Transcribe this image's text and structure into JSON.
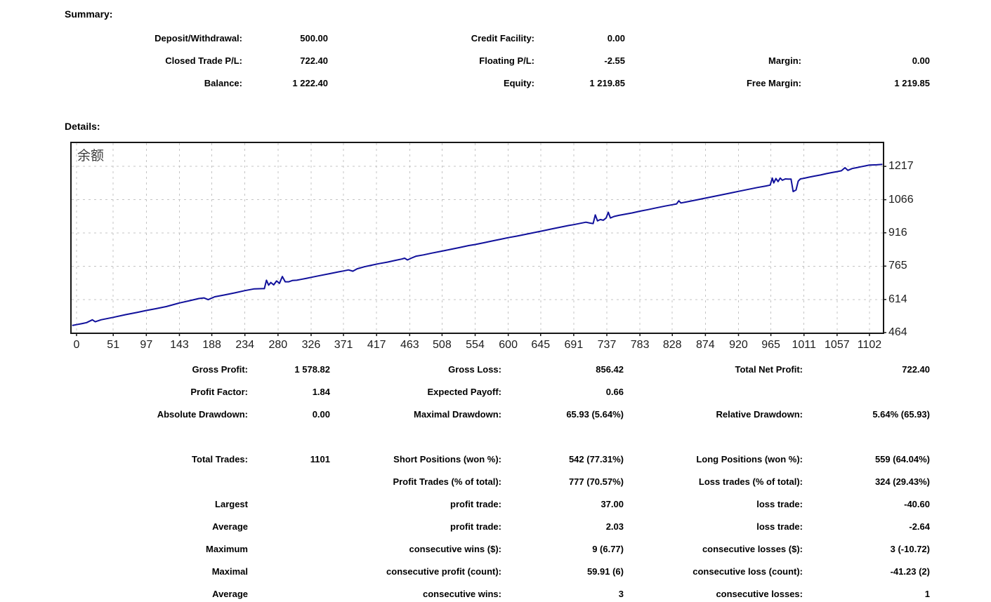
{
  "summary": {
    "heading": "Summary:",
    "rows": [
      [
        "Deposit/Withdrawal:",
        "500.00",
        "Credit Facility:",
        "0.00",
        "",
        ""
      ],
      [
        "Closed Trade P/L:",
        "722.40",
        "Floating P/L:",
        "-2.55",
        "Margin:",
        "0.00"
      ],
      [
        "Balance:",
        "1 222.40",
        "Equity:",
        "1 219.85",
        "Free Margin:",
        "1 219.85"
      ]
    ]
  },
  "details": {
    "heading": "Details:",
    "rows": [
      [
        "Gross Profit:",
        "1 578.82",
        "Gross Loss:",
        "856.42",
        "Total Net Profit:",
        "722.40"
      ],
      [
        "Profit Factor:",
        "1.84",
        "Expected Payoff:",
        "0.66",
        "",
        ""
      ],
      [
        "Absolute Drawdown:",
        "0.00",
        "Maximal Drawdown:",
        "65.93 (5.64%)",
        "Relative Drawdown:",
        "5.64% (65.93)"
      ],
      [
        "",
        "",
        "",
        "",
        "",
        ""
      ],
      [
        "Total Trades:",
        "1101",
        "Short Positions (won %):",
        "542 (77.31%)",
        "Long Positions (won %):",
        "559 (64.04%)"
      ],
      [
        "",
        "",
        "Profit Trades (% of total):",
        "777 (70.57%)",
        "Loss trades (% of total):",
        "324 (29.43%)"
      ],
      [
        "Largest",
        "",
        "profit trade:",
        "37.00",
        "loss trade:",
        "-40.60"
      ],
      [
        "Average",
        "",
        "profit trade:",
        "2.03",
        "loss trade:",
        "-2.64"
      ],
      [
        "Maximum",
        "",
        "consecutive wins ($):",
        "9 (6.77)",
        "consecutive losses ($):",
        "3 (-10.72)"
      ],
      [
        "Maximal",
        "",
        "consecutive profit (count):",
        "59.91 (6)",
        "consecutive loss (count):",
        "-41.23 (2)"
      ],
      [
        "Average",
        "",
        "consecutive wins:",
        "3",
        "consecutive losses:",
        "1"
      ]
    ]
  },
  "chart_data": {
    "type": "line",
    "title": "余额",
    "line_color": "#10109B",
    "grid_color": "#c4c4c4",
    "axis_color": "#161616",
    "grid": "dashed",
    "x_ticks": [
      0,
      51,
      97,
      143,
      188,
      234,
      280,
      326,
      371,
      417,
      463,
      508,
      554,
      600,
      645,
      691,
      737,
      783,
      828,
      874,
      920,
      965,
      1011,
      1057,
      1102
    ],
    "y_ticks": [
      464,
      614,
      765,
      916,
      1066,
      1217
    ],
    "x_range": [
      -6.8,
      1120.6
    ],
    "y_range": [
      464,
      1322.2
    ],
    "series": [
      {
        "name": "余额",
        "points": [
          [
            -6,
            496
          ],
          [
            0,
            500
          ],
          [
            8,
            505
          ],
          [
            14,
            509
          ],
          [
            22,
            522
          ],
          [
            26,
            513
          ],
          [
            34,
            522
          ],
          [
            51,
            533
          ],
          [
            68,
            545
          ],
          [
            85,
            556
          ],
          [
            97,
            564
          ],
          [
            110,
            572
          ],
          [
            125,
            582
          ],
          [
            143,
            598
          ],
          [
            158,
            609
          ],
          [
            170,
            618
          ],
          [
            177,
            621
          ],
          [
            183,
            613
          ],
          [
            192,
            626
          ],
          [
            205,
            634
          ],
          [
            220,
            644
          ],
          [
            234,
            654
          ],
          [
            247,
            662
          ],
          [
            258,
            663
          ],
          [
            261,
            663
          ],
          [
            264,
            701
          ],
          [
            267,
            679
          ],
          [
            270,
            691
          ],
          [
            274,
            680
          ],
          [
            278,
            698
          ],
          [
            282,
            687
          ],
          [
            286,
            718
          ],
          [
            290,
            694
          ],
          [
            295,
            694
          ],
          [
            300,
            700
          ],
          [
            306,
            701
          ],
          [
            312,
            705
          ],
          [
            320,
            710
          ],
          [
            326,
            714
          ],
          [
            338,
            722
          ],
          [
            352,
            731
          ],
          [
            364,
            739
          ],
          [
            371,
            743
          ],
          [
            378,
            748
          ],
          [
            384,
            742
          ],
          [
            390,
            753
          ],
          [
            400,
            762
          ],
          [
            410,
            769
          ],
          [
            420,
            776
          ],
          [
            432,
            783
          ],
          [
            443,
            791
          ],
          [
            452,
            797
          ],
          [
            456,
            801
          ],
          [
            460,
            793
          ],
          [
            465,
            801
          ],
          [
            472,
            810
          ],
          [
            482,
            816
          ],
          [
            494,
            824
          ],
          [
            508,
            833
          ],
          [
            520,
            841
          ],
          [
            532,
            849
          ],
          [
            545,
            858
          ],
          [
            554,
            863
          ],
          [
            566,
            871
          ],
          [
            578,
            879
          ],
          [
            590,
            887
          ],
          [
            600,
            894
          ],
          [
            612,
            901
          ],
          [
            624,
            909
          ],
          [
            636,
            917
          ],
          [
            648,
            925
          ],
          [
            660,
            933
          ],
          [
            672,
            941
          ],
          [
            684,
            949
          ],
          [
            691,
            953
          ],
          [
            700,
            959
          ],
          [
            708,
            964
          ],
          [
            714,
            960
          ],
          [
            718,
            958
          ],
          [
            721,
            997
          ],
          [
            724,
            970
          ],
          [
            728,
            976
          ],
          [
            732,
            973
          ],
          [
            736,
            983
          ],
          [
            739,
            1009
          ],
          [
            742,
            983
          ],
          [
            747,
            990
          ],
          [
            754,
            995
          ],
          [
            762,
            1000
          ],
          [
            772,
            1006
          ],
          [
            783,
            1014
          ],
          [
            794,
            1021
          ],
          [
            806,
            1029
          ],
          [
            818,
            1037
          ],
          [
            828,
            1043
          ],
          [
            834,
            1047
          ],
          [
            837,
            1061
          ],
          [
            840,
            1051
          ],
          [
            846,
            1055
          ],
          [
            854,
            1060
          ],
          [
            862,
            1065
          ],
          [
            874,
            1073
          ],
          [
            886,
            1081
          ],
          [
            898,
            1089
          ],
          [
            910,
            1097
          ],
          [
            922,
            1105
          ],
          [
            934,
            1113
          ],
          [
            946,
            1121
          ],
          [
            958,
            1128
          ],
          [
            964,
            1132
          ],
          [
            967,
            1164
          ],
          [
            969,
            1142
          ],
          [
            972,
            1162
          ],
          [
            975,
            1148
          ],
          [
            978,
            1164
          ],
          [
            981,
            1154
          ],
          [
            985,
            1160
          ],
          [
            989,
            1159
          ],
          [
            993,
            1159
          ],
          [
            996,
            1103
          ],
          [
            1000,
            1110
          ],
          [
            1003,
            1150
          ],
          [
            1006,
            1160
          ],
          [
            1011,
            1163
          ],
          [
            1018,
            1168
          ],
          [
            1026,
            1173
          ],
          [
            1034,
            1178
          ],
          [
            1042,
            1184
          ],
          [
            1050,
            1189
          ],
          [
            1057,
            1193
          ],
          [
            1063,
            1197
          ],
          [
            1068,
            1211
          ],
          [
            1072,
            1199
          ],
          [
            1078,
            1207
          ],
          [
            1084,
            1211
          ],
          [
            1090,
            1215
          ],
          [
            1096,
            1219
          ],
          [
            1102,
            1223
          ],
          [
            1112,
            1224
          ],
          [
            1120,
            1226
          ]
        ]
      }
    ]
  }
}
